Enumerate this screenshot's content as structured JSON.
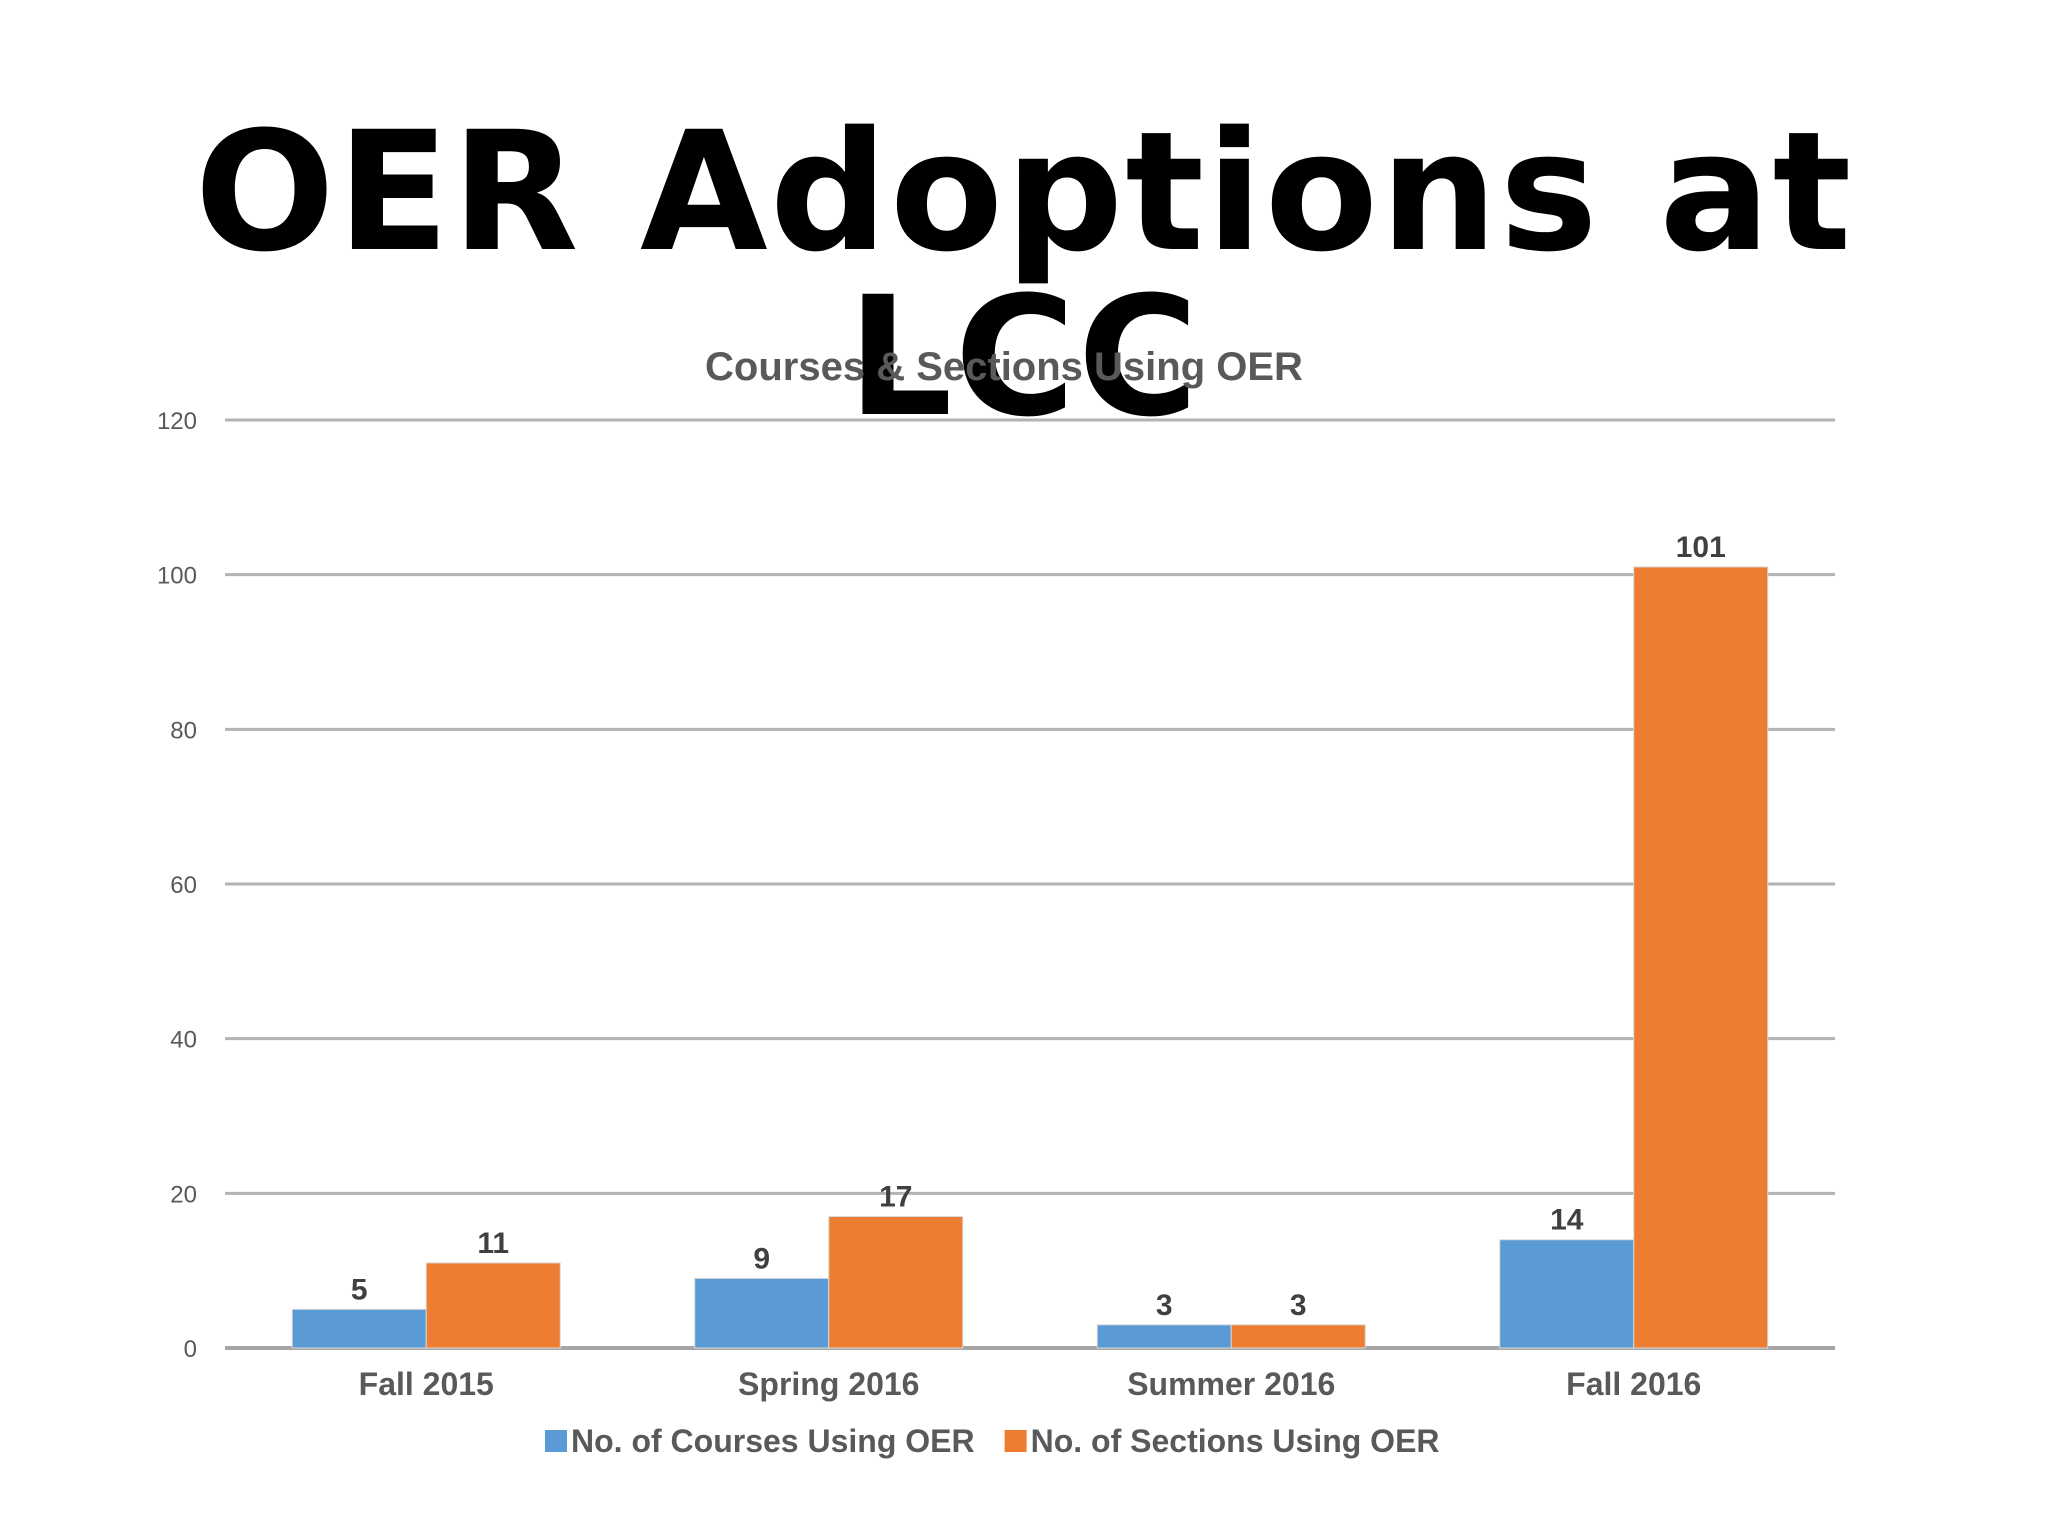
{
  "slide": {
    "title": "OER Adoptions at LCC"
  },
  "chart_data": {
    "type": "bar",
    "title": "Courses & Sections Using OER",
    "xlabel": "",
    "ylabel": "",
    "categories": [
      "Fall 2015",
      "Spring 2016",
      "Summer 2016",
      "Fall 2016"
    ],
    "series": [
      {
        "name": "No. of Courses Using OER",
        "values": [
          5,
          9,
          3,
          14
        ],
        "color": "#5B9BD5"
      },
      {
        "name": "No. of Sections Using OER",
        "values": [
          11,
          17,
          3,
          101
        ],
        "color": "#ED7D31"
      }
    ],
    "ylim": [
      0,
      120
    ],
    "yticks": [
      0,
      20,
      40,
      60,
      80,
      100,
      120
    ],
    "grid": true,
    "data_labels": true,
    "legend_position": "bottom"
  }
}
